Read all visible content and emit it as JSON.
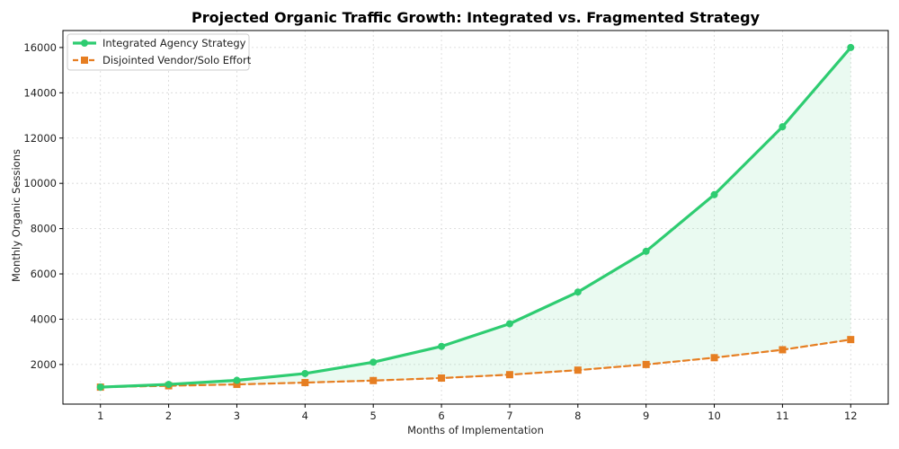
{
  "chart_data": {
    "type": "line",
    "title": "Projected Organic Traffic Growth: Integrated vs. Fragmented Strategy",
    "xlabel": "Months of Implementation",
    "ylabel": "Monthly Organic Sessions",
    "x": [
      1,
      2,
      3,
      4,
      5,
      6,
      7,
      8,
      9,
      10,
      11,
      12
    ],
    "xticks": [
      "1",
      "2",
      "3",
      "4",
      "5",
      "6",
      "7",
      "8",
      "9",
      "10",
      "11",
      "12"
    ],
    "yticks": [
      2000,
      4000,
      6000,
      8000,
      10000,
      12000,
      14000,
      16000
    ],
    "ytick_labels": [
      "2000",
      "4000",
      "6000",
      "8000",
      "10000",
      "12000",
      "14000",
      "16000"
    ],
    "xlim": [
      0.45,
      12.55
    ],
    "ylim": [
      250,
      16750
    ],
    "grid": true,
    "legend_position": "top-left",
    "fill_between": {
      "series": [
        0,
        1
      ],
      "color": "#2ecc71",
      "opacity": 0.1
    },
    "series": [
      {
        "name": "Integrated Agency Strategy",
        "values": [
          1000,
          1120,
          1300,
          1600,
          2100,
          2800,
          3800,
          5200,
          7000,
          9500,
          12500,
          16000
        ],
        "color": "#2ecc71",
        "line_style": "solid",
        "marker": "circle"
      },
      {
        "name": "Disjointed Vendor/Solo Effort",
        "values": [
          1000,
          1060,
          1120,
          1200,
          1290,
          1400,
          1550,
          1750,
          2000,
          2300,
          2650,
          3100
        ],
        "color": "#e67e22",
        "line_style": "dashed",
        "marker": "square"
      }
    ]
  }
}
